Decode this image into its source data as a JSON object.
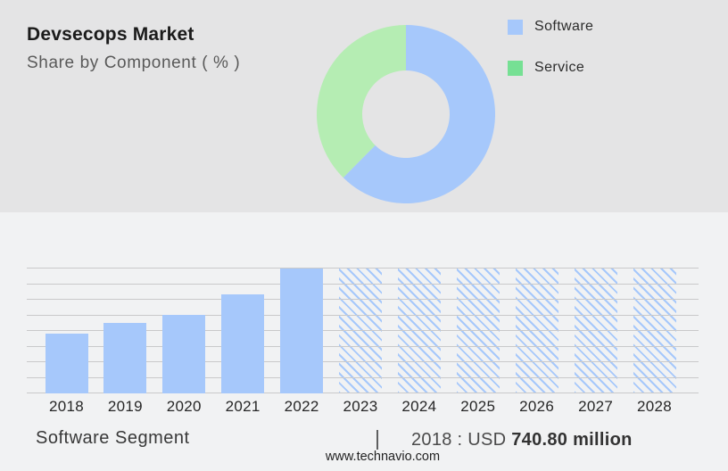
{
  "header": {
    "title": "Devsecops Market",
    "subtitle": "Share by Component ( % )"
  },
  "legend": {
    "items": [
      {
        "label": "Software",
        "color": "#a6c8fb"
      },
      {
        "label": "Service",
        "color": "#76e094"
      }
    ]
  },
  "chart_data": [
    {
      "type": "pie",
      "subtype": "donut",
      "title": "Devsecops Market - Share by Component ( % )",
      "start_angle_deg": 0,
      "inner_radius_ratio": 0.49,
      "legend_position": "top-right",
      "slices": [
        {
          "label": "Software",
          "value": 62.4,
          "color": "#a6c8fb"
        },
        {
          "label": "Service",
          "value": 37.6,
          "color": "#b5edb3"
        }
      ]
    },
    {
      "type": "bar",
      "title": "Software Segment",
      "categories": [
        "2018",
        "2019",
        "2020",
        "2021",
        "2022",
        "2023",
        "2024",
        "2025",
        "2026",
        "2027",
        "2028"
      ],
      "values_relative": [
        0.475,
        0.565,
        0.63,
        0.794,
        1.0,
        1.0,
        1.0,
        1.0,
        1.0,
        1.0,
        1.0
      ],
      "estimated_values_usd_million": [
        740.8,
        880,
        980,
        1240,
        1560,
        null,
        null,
        null,
        null,
        null,
        null
      ],
      "labeled_point": {
        "category": "2018",
        "text": "2018 : USD 740.80 million"
      },
      "historical_years": [
        "2018",
        "2019",
        "2020",
        "2021",
        "2022"
      ],
      "forecast_years_hatched": [
        "2023",
        "2024",
        "2025",
        "2026",
        "2027",
        "2028"
      ],
      "forecast_note": "forecast bars drawn full height with diagonal hatch, values not labeled",
      "bar_color": "#a6c8fb",
      "hatch_color": "#a6c8fb",
      "gridline_color": "#c9c9ca",
      "gridline_count": 9,
      "xlabel": "",
      "ylabel": "",
      "y_axis_labels_visible": false,
      "grid": true
    }
  ],
  "footer": {
    "segment_label": "Software Segment",
    "separator": "|",
    "value_prefix": "2018 : USD",
    "value_bold": "740.80 million",
    "website": "www.technavio.com"
  },
  "colors": {
    "top_background": "#e4e4e5",
    "bottom_background": "#f1f2f3"
  }
}
